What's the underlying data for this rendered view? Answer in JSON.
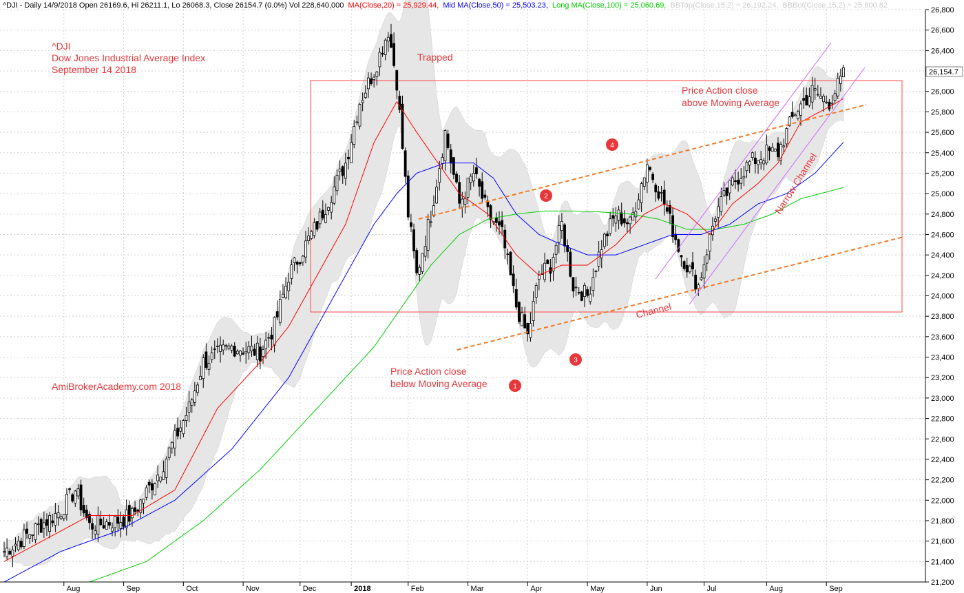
{
  "header": {
    "prefix": "^DJI - Daily 14/9/2018 Open 26169.6, Hi 26211.1, Lo 26068.3, Close 26154.7 (0.0%) Vol 228,640,000",
    "ma20": "MA(Close,20) = 25,929.44,",
    "ma50": "Mid MA(Close,50) = 25,503.23,",
    "ma100": "Long MA(Close,100) = 25,060.69,",
    "bbtop": "BBTop(Close,15,2) = 26,192.24,",
    "bbbot": "BBBot(Close,15,2) = 25,800.82"
  },
  "title_block": {
    "line1": "^DJI",
    "line2": "Dow Jones Industrial Average Index",
    "line3": "September 14 2018"
  },
  "watermark": "AmiBrokerAcademy.com  2018",
  "annotations": {
    "trapped": "Trapped",
    "pa_below_1": "Price Action close",
    "pa_below_2": "below Moving Average",
    "pa_above_1": "Price Action close",
    "pa_above_2": "above Moving Average",
    "channel": "Channel",
    "narrow_channel": "Narrow Channel",
    "markers": [
      "1",
      "2",
      "3",
      "4"
    ]
  },
  "last_price_label": "26,154.7",
  "colors": {
    "ma20": "#ff0000",
    "ma50": "#0000ff",
    "ma100": "#00cc00",
    "bb_band": "#e6e6e6",
    "annotation": "#e8373a",
    "channel_line": "#f07c28",
    "narrow_channel_line": "#cc66ff",
    "box": "#ff4444"
  },
  "chart_data": {
    "type": "candlestick",
    "ylim": [
      21200,
      26800
    ],
    "y_ticks": [
      21200,
      21400,
      21600,
      21800,
      22000,
      22200,
      22400,
      22600,
      22800,
      23000,
      23200,
      23400,
      23600,
      23800,
      24000,
      24200,
      24400,
      24600,
      24800,
      25000,
      25200,
      25400,
      25600,
      25800,
      26000,
      26200,
      26400,
      26600,
      26800
    ],
    "y_tick_labels": [
      "21,200",
      "21,400",
      "21,600",
      "21,800",
      "22,000",
      "22,200",
      "22,400",
      "22,600",
      "22,800",
      "23,000",
      "23,200",
      "23,400",
      "23,600",
      "23,800",
      "24,000",
      "24,200",
      "24,400",
      "24,600",
      "24,800",
      "25,000",
      "25,200",
      "25,400",
      "25,600",
      "25,800",
      "26,000",
      "26,200",
      "26,400",
      "26,600",
      "26,800"
    ],
    "x_labels": [
      "Aug",
      "Sep",
      "Oct",
      "Nov",
      "Dec",
      "2018",
      "Feb",
      "Mar",
      "Apr",
      "May",
      "Jun",
      "Jul",
      "Aug",
      "Sep"
    ],
    "x_label_days": [
      21,
      42,
      63,
      84,
      104,
      122,
      142,
      163,
      184,
      205,
      226,
      246,
      268,
      289
    ],
    "total_days": 300,
    "close_keypoints": [
      [
        0,
        21500
      ],
      [
        10,
        21700
      ],
      [
        20,
        21900
      ],
      [
        25,
        22100
      ],
      [
        30,
        21750
      ],
      [
        40,
        21800
      ],
      [
        45,
        21850
      ],
      [
        55,
        22300
      ],
      [
        60,
        22600
      ],
      [
        65,
        22900
      ],
      [
        70,
        23350
      ],
      [
        80,
        23500
      ],
      [
        90,
        23450
      ],
      [
        95,
        23700
      ],
      [
        100,
        24200
      ],
      [
        110,
        24700
      ],
      [
        120,
        25300
      ],
      [
        125,
        25900
      ],
      [
        130,
        26200
      ],
      [
        135,
        26600
      ],
      [
        138,
        26100
      ],
      [
        142,
        24800
      ],
      [
        145,
        24200
      ],
      [
        150,
        24800
      ],
      [
        155,
        25600
      ],
      [
        160,
        24900
      ],
      [
        165,
        25200
      ],
      [
        170,
        24800
      ],
      [
        175,
        24600
      ],
      [
        180,
        23900
      ],
      [
        184,
        23600
      ],
      [
        188,
        24200
      ],
      [
        192,
        24300
      ],
      [
        196,
        24700
      ],
      [
        200,
        24100
      ],
      [
        205,
        24000
      ],
      [
        210,
        24500
      ],
      [
        215,
        24800
      ],
      [
        220,
        24700
      ],
      [
        226,
        25300
      ],
      [
        232,
        24900
      ],
      [
        238,
        24400
      ],
      [
        244,
        24100
      ],
      [
        250,
        24800
      ],
      [
        256,
        25100
      ],
      [
        262,
        25300
      ],
      [
        268,
        25400
      ],
      [
        272,
        25400
      ],
      [
        278,
        25800
      ],
      [
        284,
        26000
      ],
      [
        290,
        25900
      ],
      [
        295,
        26154.7
      ]
    ],
    "ma20_keypoints": [
      [
        0,
        21400
      ],
      [
        20,
        21700
      ],
      [
        30,
        21850
      ],
      [
        45,
        21850
      ],
      [
        60,
        22100
      ],
      [
        75,
        22900
      ],
      [
        90,
        23350
      ],
      [
        100,
        23700
      ],
      [
        110,
        24200
      ],
      [
        120,
        24700
      ],
      [
        130,
        25500
      ],
      [
        138,
        25900
      ],
      [
        145,
        25600
      ],
      [
        150,
        25400
      ],
      [
        160,
        25000
      ],
      [
        170,
        24800
      ],
      [
        180,
        24400
      ],
      [
        188,
        24200
      ],
      [
        196,
        24300
      ],
      [
        205,
        24300
      ],
      [
        215,
        24500
      ],
      [
        225,
        24800
      ],
      [
        232,
        24900
      ],
      [
        240,
        24800
      ],
      [
        248,
        24600
      ],
      [
        256,
        24900
      ],
      [
        265,
        25100
      ],
      [
        272,
        25300
      ],
      [
        280,
        25700
      ],
      [
        290,
        25850
      ],
      [
        295,
        25929
      ]
    ],
    "ma50_keypoints": [
      [
        0,
        21200
      ],
      [
        20,
        21500
      ],
      [
        40,
        21700
      ],
      [
        60,
        22000
      ],
      [
        80,
        22500
      ],
      [
        100,
        23200
      ],
      [
        110,
        23700
      ],
      [
        120,
        24200
      ],
      [
        130,
        24700
      ],
      [
        138,
        25000
      ],
      [
        145,
        25200
      ],
      [
        155,
        25300
      ],
      [
        165,
        25300
      ],
      [
        172,
        25150
      ],
      [
        180,
        24800
      ],
      [
        188,
        24600
      ],
      [
        196,
        24500
      ],
      [
        205,
        24400
      ],
      [
        215,
        24400
      ],
      [
        225,
        24500
      ],
      [
        235,
        24600
      ],
      [
        245,
        24600
      ],
      [
        255,
        24700
      ],
      [
        265,
        24900
      ],
      [
        275,
        25000
      ],
      [
        285,
        25200
      ],
      [
        295,
        25503
      ]
    ],
    "ma100_keypoints": [
      [
        30,
        21200
      ],
      [
        50,
        21400
      ],
      [
        70,
        21800
      ],
      [
        90,
        22300
      ],
      [
        110,
        22900
      ],
      [
        130,
        23500
      ],
      [
        140,
        23900
      ],
      [
        150,
        24300
      ],
      [
        160,
        24600
      ],
      [
        170,
        24750
      ],
      [
        180,
        24800
      ],
      [
        190,
        24830
      ],
      [
        200,
        24830
      ],
      [
        210,
        24820
      ],
      [
        220,
        24800
      ],
      [
        230,
        24750
      ],
      [
        240,
        24650
      ],
      [
        250,
        24650
      ],
      [
        260,
        24700
      ],
      [
        270,
        24800
      ],
      [
        280,
        24950
      ],
      [
        295,
        25060
      ]
    ]
  }
}
